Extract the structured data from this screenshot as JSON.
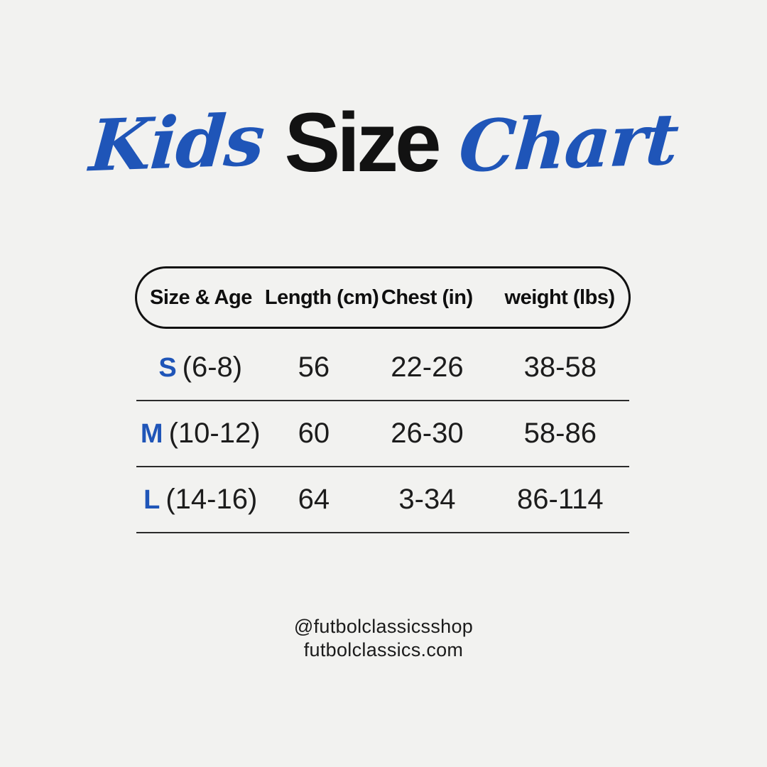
{
  "title": {
    "word_kids": "Kids",
    "word_size": "Size",
    "word_chart": "Chart"
  },
  "table": {
    "headers": [
      "Size & Age",
      "Length (cm)",
      "Chest (in)",
      "weight (lbs)"
    ],
    "rows": [
      {
        "size": "S",
        "age": "(6-8)",
        "length": "56",
        "chest": "22-26",
        "weight": "38-58"
      },
      {
        "size": "M",
        "age": "(10-12)",
        "length": "60",
        "chest": "26-30",
        "weight": "58-86"
      },
      {
        "size": "L",
        "age": "(14-16)",
        "length": "64",
        "chest": "3-34",
        "weight": "86-114"
      }
    ]
  },
  "footer": {
    "social_handle": "@futbolclassicsshop",
    "website": "futbolclassics.com"
  },
  "colors": {
    "accent_blue": "#1f55b8",
    "text_black": "#121212",
    "background": "#f2f2f0"
  }
}
